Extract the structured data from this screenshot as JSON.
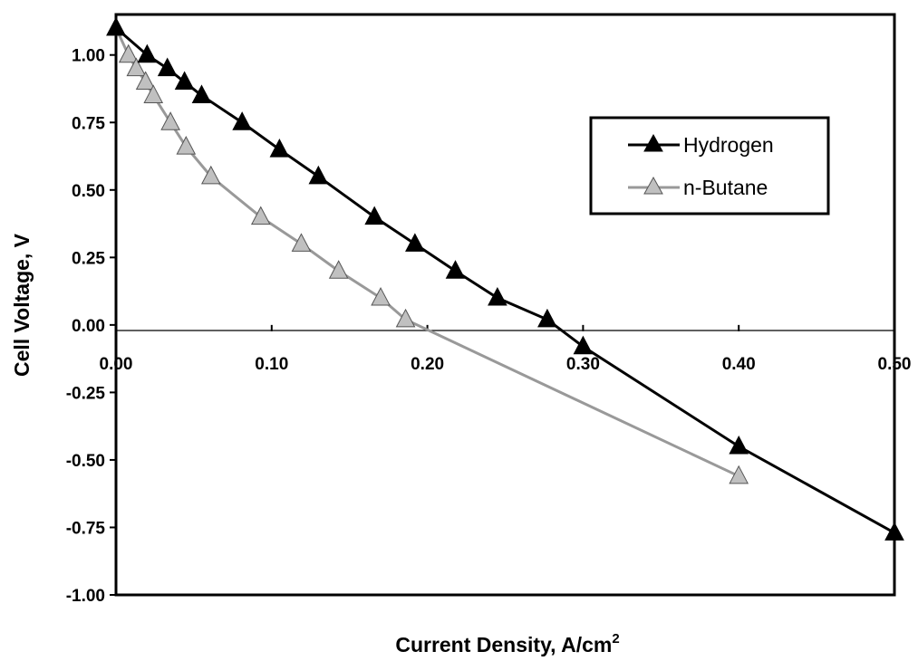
{
  "chart_data": {
    "type": "line",
    "xlabel": "Current Density, A/cm",
    "xlabel_superscript": "2",
    "ylabel": "Cell Voltage, V",
    "xlim": [
      0,
      0.5
    ],
    "ylim": [
      -1.0,
      1.15
    ],
    "x_ticks": [
      "0.00",
      "0.10",
      "0.20",
      "0.30",
      "0.40",
      "0.50"
    ],
    "y_ticks": [
      "1.00",
      "0.75",
      "0.50",
      "0.25",
      "0.00",
      "-0.25",
      "-0.50",
      "-0.75",
      "-1.00"
    ],
    "grid": false,
    "legend_position": "right",
    "series": [
      {
        "name": "Hydrogen",
        "color": "#000000",
        "marker_fill": "#000000",
        "marker": "triangle",
        "x": [
          0.0,
          0.02,
          0.033,
          0.044,
          0.055,
          0.081,
          0.105,
          0.13,
          0.166,
          0.192,
          0.218,
          0.245,
          0.277,
          0.3,
          0.4,
          0.5
        ],
        "y": [
          1.1,
          1.0,
          0.95,
          0.9,
          0.85,
          0.75,
          0.65,
          0.55,
          0.4,
          0.3,
          0.2,
          0.1,
          0.02,
          -0.08,
          -0.45,
          -0.77
        ]
      },
      {
        "name": "n-Butane",
        "color": "#999999",
        "marker_fill": "#c0c0c0",
        "marker": "triangle",
        "x": [
          0.0,
          0.008,
          0.013,
          0.019,
          0.024,
          0.035,
          0.045,
          0.061,
          0.093,
          0.119,
          0.143,
          0.17,
          0.186,
          0.4
        ],
        "y": [
          1.1,
          1.0,
          0.95,
          0.9,
          0.85,
          0.75,
          0.66,
          0.55,
          0.4,
          0.3,
          0.2,
          0.1,
          0.02,
          -0.56
        ]
      }
    ]
  }
}
